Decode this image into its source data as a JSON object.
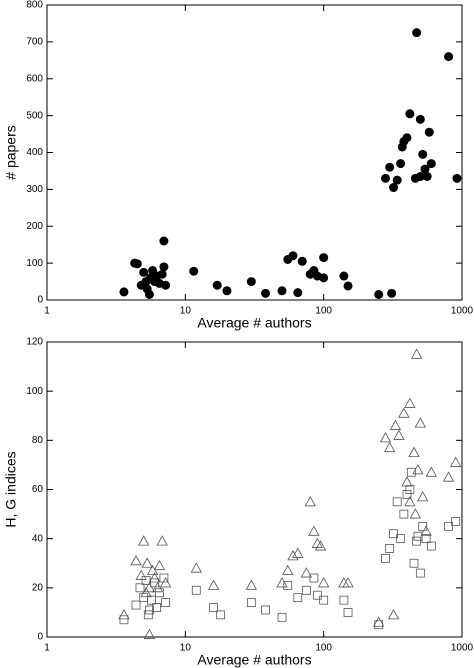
{
  "chart_data": [
    {
      "type": "scatter",
      "xlabel": "Average # authors",
      "ylabel": "# papers",
      "xscale": "log",
      "xlim": [
        1,
        1000
      ],
      "ylim": [
        0,
        800
      ],
      "xticks": [
        1,
        10,
        100,
        1000
      ],
      "yticks": [
        0,
        100,
        200,
        300,
        400,
        500,
        600,
        700,
        800
      ],
      "series": [
        {
          "marker": "circle",
          "color": "#000000",
          "x": [
            3.6,
            4.3,
            4.5,
            5.0,
            4.8,
            5.2,
            5.3,
            5.5,
            5.6,
            5.8,
            6.0,
            6.2,
            6.5,
            6.8,
            7.0,
            7.2,
            7.0,
            11.5,
            17,
            20,
            30,
            38,
            50,
            55,
            60,
            70,
            65,
            80,
            85,
            90,
            100,
            100,
            140,
            150,
            250,
            310,
            280,
            300,
            320,
            340,
            360,
            370,
            380,
            420,
            460,
            470,
            500,
            520,
            540,
            560,
            580,
            600,
            500,
            800,
            920,
            400
          ],
          "values": [
            22,
            100,
            98,
            75,
            40,
            50,
            30,
            15,
            60,
            80,
            50,
            65,
            45,
            70,
            90,
            40,
            160,
            78,
            40,
            25,
            50,
            18,
            25,
            110,
            120,
            105,
            20,
            70,
            80,
            65,
            115,
            60,
            65,
            38,
            15,
            18,
            330,
            360,
            305,
            325,
            370,
            415,
            430,
            505,
            330,
            725,
            490,
            395,
            355,
            335,
            455,
            370,
            335,
            660,
            330,
            440
          ]
        }
      ]
    },
    {
      "type": "scatter",
      "xlabel": "Average # authors",
      "ylabel": "H, G indices",
      "xscale": "log",
      "xlim": [
        1,
        1000
      ],
      "ylim": [
        0,
        120
      ],
      "xticks": [
        1,
        10,
        100,
        1000
      ],
      "yticks": [
        0,
        20,
        40,
        60,
        80,
        100,
        120
      ],
      "series": [
        {
          "marker": "triangle",
          "color": "#555555",
          "x": [
            3.6,
            4.4,
            4.8,
            5.0,
            5.3,
            5.5,
            5.8,
            6.0,
            6.3,
            6.5,
            6.8,
            7.2,
            5.2,
            5.5,
            12,
            16,
            30,
            50,
            55,
            60,
            65,
            75,
            80,
            85,
            90,
            95,
            100,
            140,
            150,
            250,
            280,
            300,
            320,
            330,
            350,
            380,
            400,
            420,
            450,
            470,
            480,
            500,
            520,
            550,
            600,
            800,
            900,
            420,
            460
          ],
          "values": [
            9,
            31,
            25,
            39,
            30,
            20,
            27,
            24,
            20,
            29,
            39,
            22,
            18,
            1,
            28,
            21,
            21,
            22,
            27,
            33,
            34,
            26,
            55,
            43,
            38,
            37,
            22,
            22,
            22,
            6,
            81,
            77,
            9,
            86,
            82,
            91,
            63,
            95,
            75,
            115,
            68,
            87,
            57,
            43,
            67,
            65,
            71,
            55,
            50
          ]
        },
        {
          "marker": "square",
          "color": "#555555",
          "x": [
            3.6,
            4.4,
            4.7,
            5.0,
            5.2,
            5.5,
            5.7,
            6.0,
            6.2,
            6.5,
            7.0,
            7.2,
            5.4,
            12,
            16,
            18,
            30,
            38,
            50,
            55,
            65,
            75,
            85,
            90,
            100,
            140,
            150,
            250,
            280,
            300,
            320,
            340,
            360,
            380,
            400,
            420,
            450,
            480,
            500,
            520,
            550,
            600,
            800,
            900,
            430,
            470
          ],
          "values": [
            7,
            13,
            20,
            16,
            23,
            11,
            15,
            22,
            12,
            18,
            24,
            14,
            9,
            19,
            12,
            9,
            14,
            11,
            8,
            21,
            16,
            19,
            24,
            17,
            15,
            15,
            10,
            5,
            32,
            36,
            42,
            55,
            40,
            50,
            58,
            60,
            30,
            41,
            26,
            45,
            40,
            37,
            45,
            47,
            67,
            39
          ]
        }
      ]
    }
  ]
}
